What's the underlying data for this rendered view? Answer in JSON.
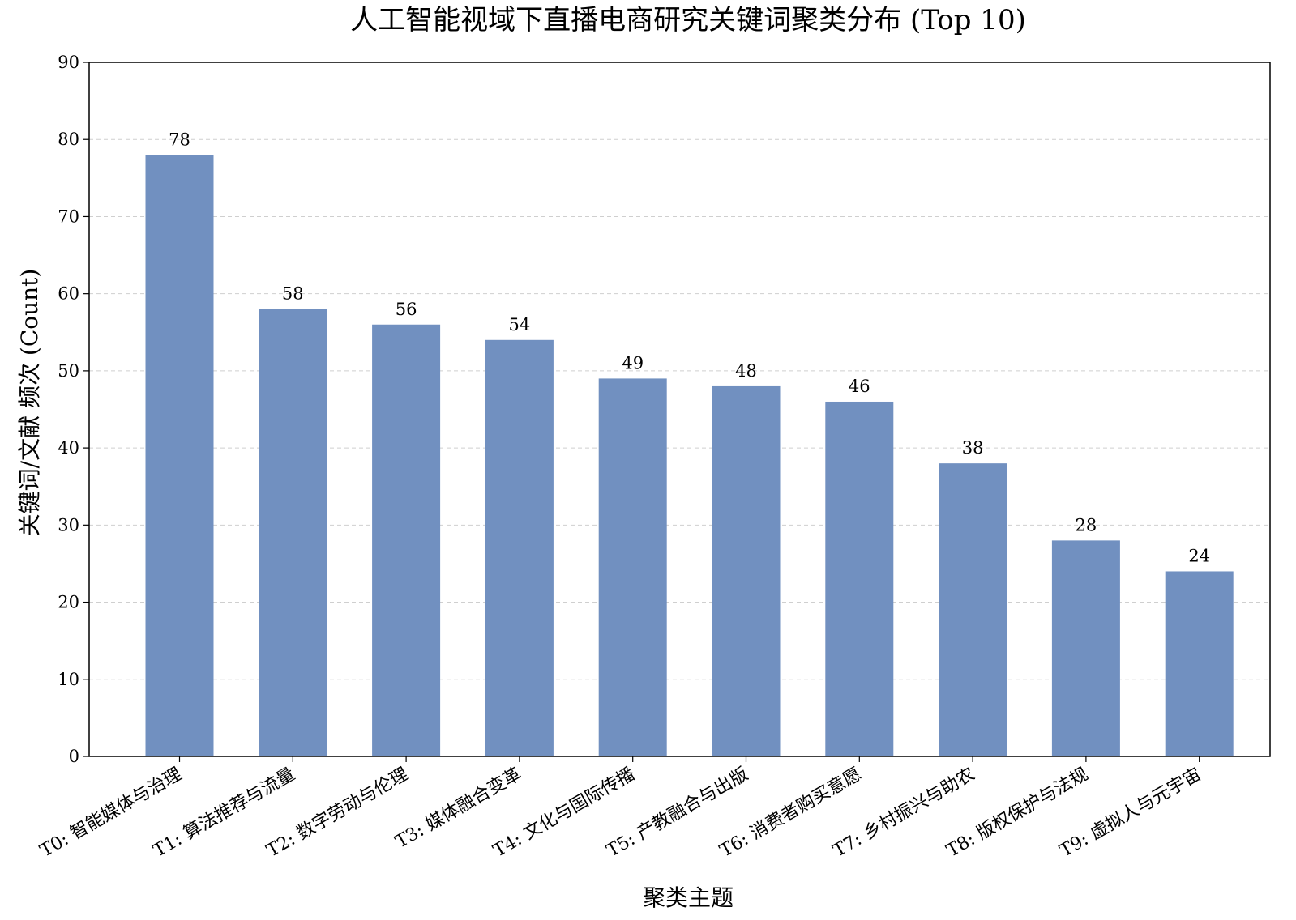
{
  "chart_data": {
    "type": "bar",
    "title": "人工智能视域下直播电商研究关键词聚类分布 (Top 10)",
    "xlabel": "聚类主题",
    "ylabel": "关键词/文献 频次 (Count)",
    "categories": [
      "T0: 智能媒体与治理",
      "T1: 算法推荐与流量",
      "T2: 数字劳动与伦理",
      "T3: 媒体融合变革",
      "T4: 文化与国际传播",
      "T5: 产教融合与出版",
      "T6: 消费者购买意愿",
      "T7: 乡村振兴与助农",
      "T8: 版权保护与法规",
      "T9: 虚拟人与元宇宙"
    ],
    "values": [
      78,
      58,
      56,
      54,
      49,
      48,
      46,
      38,
      28,
      24
    ],
    "ylim": [
      0,
      90
    ],
    "yticks": [
      0,
      10,
      20,
      30,
      40,
      50,
      60,
      70,
      80,
      90
    ],
    "grid": "horizontal dashed",
    "bar_color": "#7190c0",
    "data_labels": true
  }
}
